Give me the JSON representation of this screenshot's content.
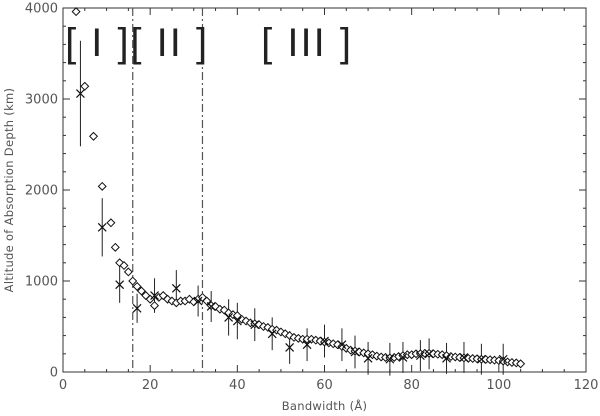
{
  "chart_data": {
    "type": "scatter",
    "title": "",
    "xlabel": "Bandwidth (Å)",
    "ylabel": "Altitude of Absorption Depth (km)",
    "xlim": [
      0,
      120
    ],
    "ylim": [
      0,
      4000
    ],
    "x_ticks": [
      0,
      20,
      40,
      60,
      80,
      100,
      120
    ],
    "y_ticks": [
      0,
      1000,
      2000,
      3000,
      4000
    ],
    "x_tick_labels": [
      "0",
      "20",
      "40",
      "60",
      "80",
      "100",
      "120"
    ],
    "y_tick_labels": [
      "0",
      "1000",
      "2000",
      "3000",
      "4000"
    ],
    "grid": false,
    "legend": "none",
    "region_boundaries": [
      16,
      32
    ],
    "region_labels": [
      {
        "text": "[ I ]",
        "x": 8
      },
      {
        "text": "[ II ]",
        "x": 24.5
      },
      {
        "text": "[ III ]",
        "x": 56
      }
    ],
    "series": [
      {
        "marker": "diamond",
        "x": [
          3,
          5,
          7,
          9,
          11,
          12,
          13,
          14,
          15,
          16,
          17,
          18,
          19,
          20,
          21,
          22,
          23,
          24,
          25,
          26,
          27,
          28,
          29,
          30,
          31,
          32,
          33,
          34,
          35,
          36,
          37,
          38,
          39,
          40,
          41,
          42,
          43,
          44,
          45,
          46,
          47,
          48,
          49,
          50,
          51,
          52,
          53,
          54,
          55,
          56,
          57,
          58,
          59,
          60,
          61,
          62,
          63,
          64,
          65,
          66,
          67,
          68,
          69,
          70,
          71,
          72,
          73,
          74,
          75,
          76,
          77,
          78,
          79,
          80,
          81,
          82,
          83,
          84,
          85,
          86,
          87,
          88,
          89,
          90,
          91,
          92,
          93,
          94,
          95,
          96,
          97,
          98,
          99,
          100,
          101,
          102,
          103,
          104,
          105
        ],
        "y": [
          3960,
          3140,
          2590,
          2040,
          1640,
          1370,
          1200,
          1170,
          1100,
          1000,
          940,
          890,
          840,
          800,
          730,
          820,
          840,
          800,
          780,
          760,
          780,
          780,
          800,
          770,
          800,
          820,
          780,
          730,
          720,
          690,
          680,
          650,
          630,
          620,
          580,
          560,
          540,
          530,
          520,
          500,
          490,
          470,
          460,
          440,
          420,
          400,
          380,
          370,
          360,
          360,
          360,
          350,
          340,
          330,
          320,
          310,
          300,
          280,
          260,
          240,
          230,
          220,
          210,
          200,
          190,
          175,
          165,
          160,
          155,
          160,
          170,
          180,
          190,
          190,
          200,
          200,
          205,
          205,
          200,
          195,
          190,
          180,
          170,
          165,
          160,
          155,
          150,
          148,
          145,
          140,
          138,
          135,
          130,
          125,
          120,
          110,
          105,
          100,
          90
        ]
      },
      {
        "marker": "x",
        "x": [
          4,
          9,
          13,
          17,
          21,
          26,
          31,
          34,
          38,
          40,
          44,
          48,
          52,
          56,
          60,
          64,
          67,
          70,
          75,
          78,
          82,
          84,
          88,
          92,
          96,
          101
        ],
        "y": [
          3060,
          1590,
          960,
          700,
          840,
          920,
          780,
          720,
          600,
          560,
          520,
          420,
          270,
          300,
          340,
          300,
          220,
          150,
          140,
          160,
          180,
          200,
          150,
          160,
          140,
          140
        ],
        "err": [
          580,
          320,
          200,
          160,
          190,
          200,
          170,
          170,
          200,
          200,
          180,
          180,
          180,
          180,
          180,
          180,
          180,
          180,
          180,
          170,
          170,
          170,
          170,
          170,
          170,
          170
        ]
      }
    ]
  }
}
